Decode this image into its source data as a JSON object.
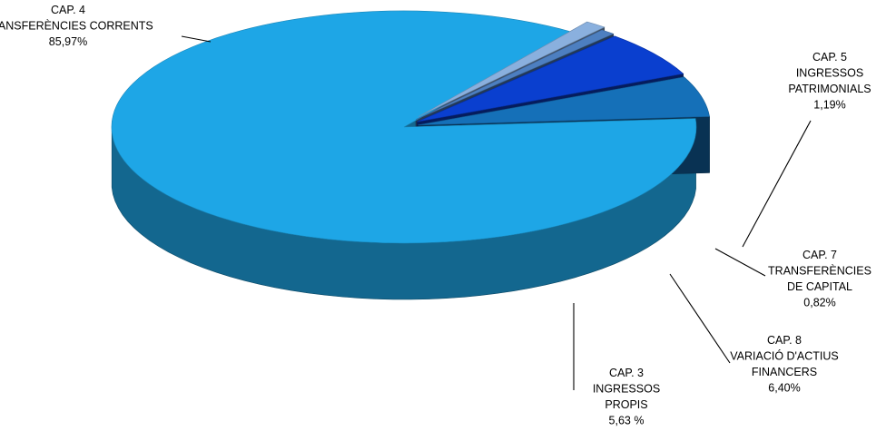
{
  "chart_data": {
    "type": "pie",
    "title": "",
    "style": "3d-exploded",
    "slices": [
      {
        "cap": "CAP. 4",
        "lines": [
          "TRANSFERÈNCIES CORRENTS"
        ],
        "value": 85.97,
        "value_text": "85,97%",
        "color": "#1ea6e6"
      },
      {
        "cap": "CAP. 5",
        "lines": [
          "INGRESSOS",
          "PATRIMONIALS"
        ],
        "value": 1.19,
        "value_text": "1,19%",
        "color": "#8ab0de"
      },
      {
        "cap": "CAP. 7",
        "lines": [
          "TRANSFERÈNCIES",
          "DE CAPITAL"
        ],
        "value": 0.82,
        "value_text": "0,82%",
        "color": "#4d7fc0"
      },
      {
        "cap": "CAP. 8",
        "lines": [
          "VARIACIÓ D'ACTIUS",
          "FINANCERS"
        ],
        "value": 6.4,
        "value_text": "6,40%",
        "color": "#0a3fcf"
      },
      {
        "cap": "CAP. 3",
        "lines": [
          "INGRESSOS",
          "PROPIS"
        ],
        "value": 5.63,
        "value_text": "5,63 %",
        "color": "#1570b8"
      }
    ]
  }
}
